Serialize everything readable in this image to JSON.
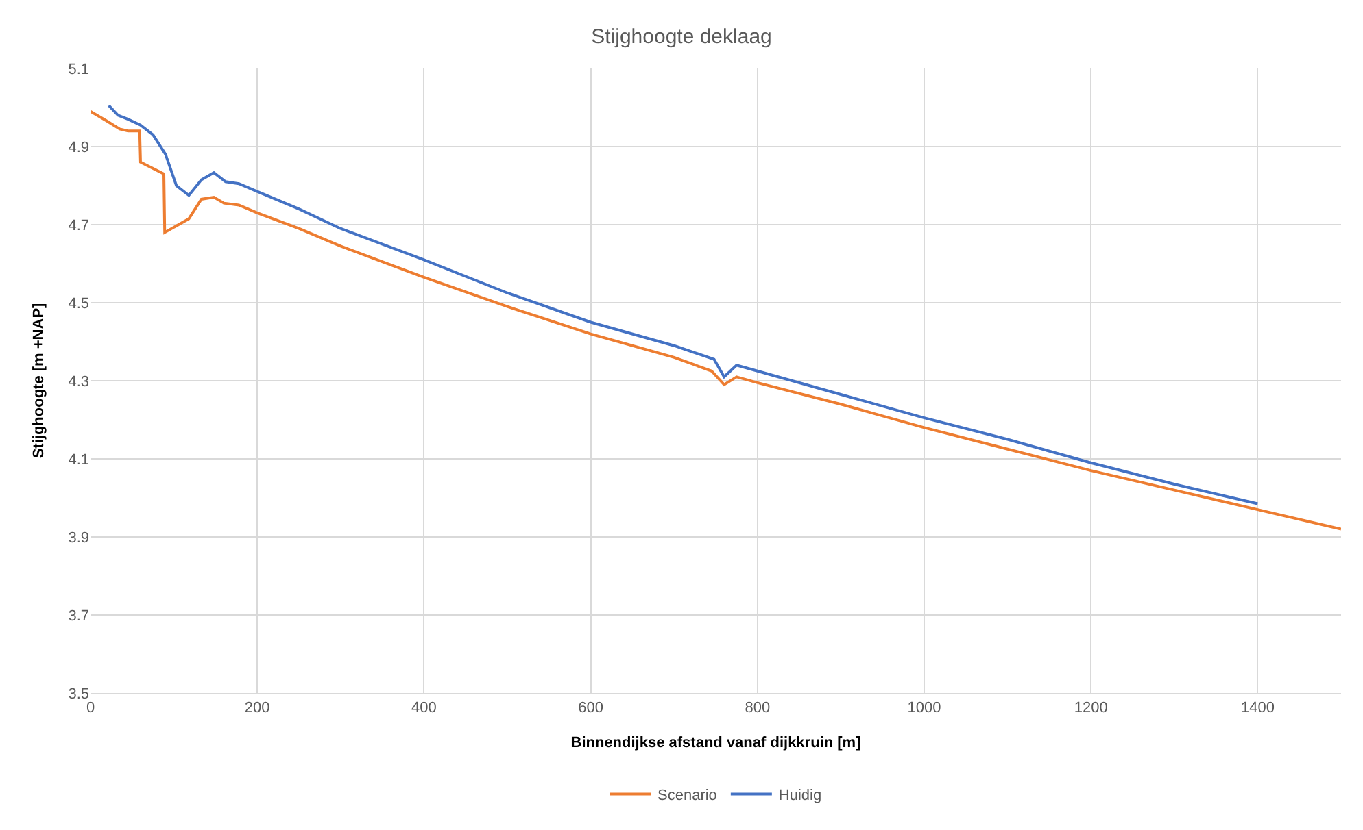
{
  "chart_data": {
    "type": "line",
    "title": "Stijghoogte deklaag",
    "xlabel": "Binnendijkse afstand vanaf dijkkruin [m]",
    "ylabel": "Stijghoogte [m +NAP]",
    "xlim": [
      0,
      1500
    ],
    "xticks": [
      0,
      200,
      400,
      600,
      800,
      1000,
      1200,
      1400
    ],
    "ylim": [
      3.5,
      5.1
    ],
    "yticks": [
      3.5,
      3.7,
      3.9,
      4.1,
      4.3,
      4.5,
      4.7,
      4.9,
      5.1
    ],
    "grid": true,
    "legend": "bottom",
    "marker": "none",
    "line_style": "solid",
    "series": [
      {
        "name": "Scenario",
        "color": "#ed7d31",
        "x": [
          0,
          20,
          35,
          45,
          59,
          60,
          88,
          89,
          118,
          133,
          148,
          160,
          178,
          200,
          250,
          300,
          400,
          500,
          600,
          700,
          745,
          760,
          775,
          800,
          900,
          1000,
          1100,
          1200,
          1300,
          1400,
          1500
        ],
        "values": [
          4.99,
          4.965,
          4.945,
          4.94,
          4.94,
          4.86,
          4.83,
          4.68,
          4.715,
          4.765,
          4.77,
          4.755,
          4.75,
          4.73,
          4.69,
          4.645,
          4.565,
          4.49,
          4.42,
          4.36,
          4.325,
          4.29,
          4.31,
          4.295,
          4.24,
          4.18,
          4.125,
          4.07,
          4.02,
          3.97,
          3.92
        ]
      },
      {
        "name": "Huidig",
        "color": "#4472c4",
        "x": [
          22,
          33,
          45,
          60,
          75,
          90,
          103,
          118,
          133,
          148,
          162,
          178,
          200,
          250,
          300,
          400,
          500,
          600,
          700,
          748,
          760,
          775,
          800,
          900,
          1000,
          1100,
          1200,
          1300,
          1400
        ],
        "values": [
          5.005,
          4.98,
          4.97,
          4.955,
          4.93,
          4.88,
          4.8,
          4.775,
          4.815,
          4.833,
          4.81,
          4.805,
          4.785,
          4.74,
          4.69,
          4.61,
          4.525,
          4.45,
          4.39,
          4.355,
          4.31,
          4.34,
          4.325,
          4.265,
          4.205,
          4.15,
          4.09,
          4.035,
          3.985
        ]
      }
    ]
  }
}
